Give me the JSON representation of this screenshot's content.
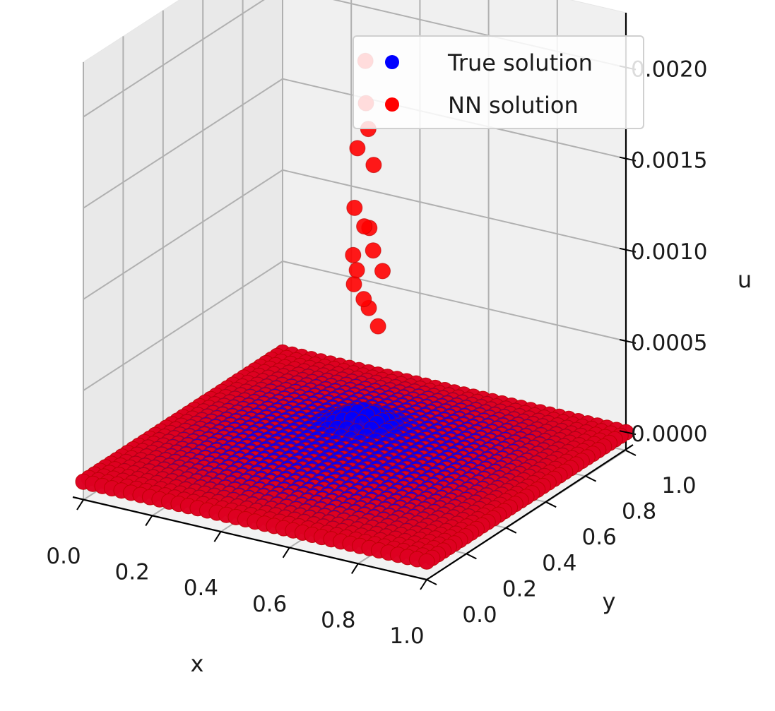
{
  "chart_data": {
    "type": "scatter3d",
    "xlabel": "x",
    "ylabel": "y",
    "zlabel": "u",
    "x_ticks": [
      "0.0",
      "0.2",
      "0.4",
      "0.6",
      "0.8",
      "1.0"
    ],
    "y_ticks": [
      "0.0",
      "0.2",
      "0.4",
      "0.6",
      "0.8",
      "1.0"
    ],
    "z_ticks": [
      "0.0000",
      "0.0005",
      "0.0010",
      "0.0015",
      "0.0020"
    ],
    "xlim": [
      0,
      1
    ],
    "ylim": [
      0,
      1
    ],
    "zlim": [
      -0.0001,
      0.0023
    ],
    "legend_position": "top-right",
    "grid": true,
    "series": [
      {
        "name": "True solution",
        "color": "#0000ff"
      },
      {
        "name": "NN solution",
        "color": "#ff0000"
      }
    ]
  }
}
